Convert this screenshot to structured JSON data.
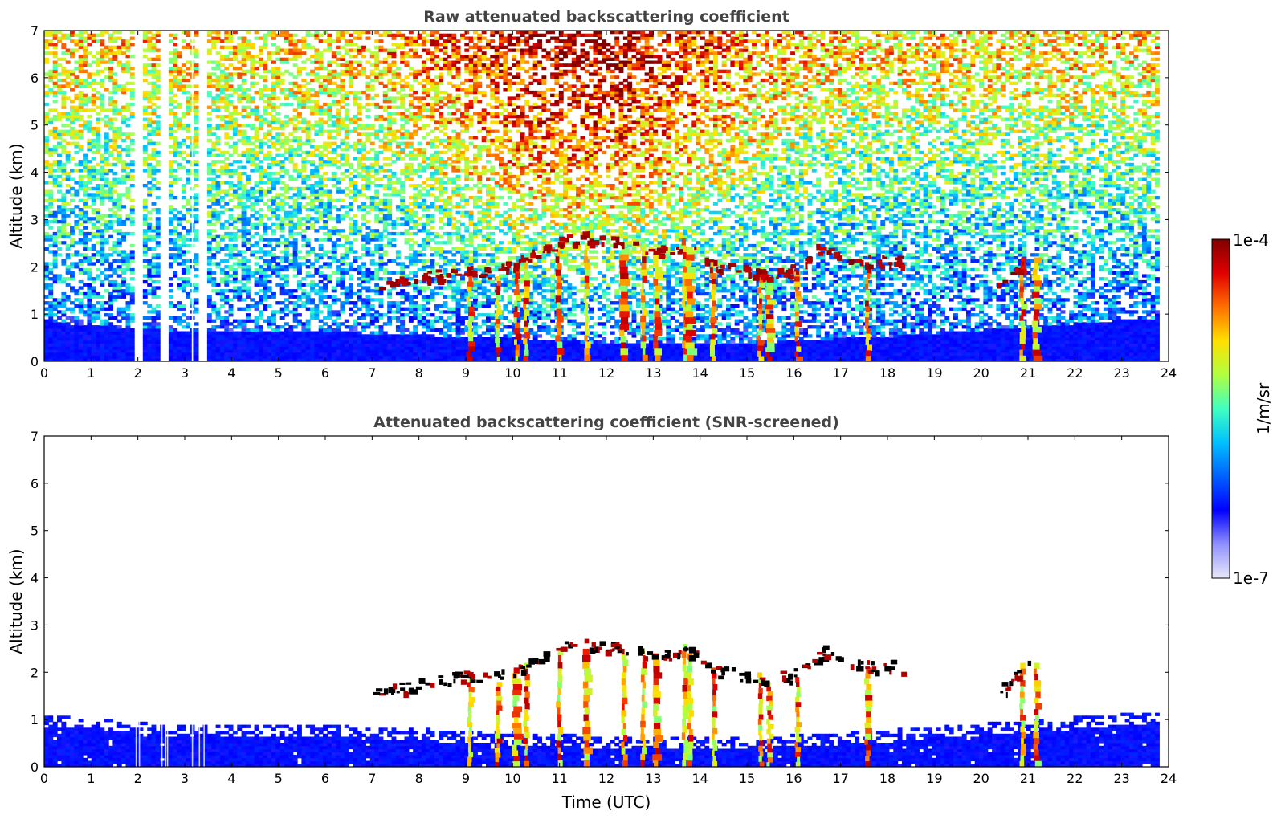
{
  "chart_data": [
    {
      "type": "heatmap",
      "title": "Raw attenuated backscattering coefficient",
      "xlabel": "",
      "ylabel": "Altitude (km)",
      "xlim": [
        0,
        24
      ],
      "ylim": [
        0,
        7
      ],
      "xticks": [
        "0",
        "1",
        "2",
        "3",
        "4",
        "5",
        "6",
        "7",
        "8",
        "9",
        "10",
        "11",
        "12",
        "13",
        "14",
        "15",
        "16",
        "17",
        "18",
        "19",
        "20",
        "21",
        "22",
        "23",
        "24"
      ],
      "yticks": [
        "0",
        "1",
        "2",
        "3",
        "4",
        "5",
        "6",
        "7"
      ],
      "data_end_hour": 23.8,
      "gap_hours": [
        1.95,
        2.02,
        2.5,
        2.58,
        2.62,
        3.15,
        3.3,
        3.4
      ],
      "boundary_layer_top_km": [
        {
          "x": 0,
          "y": 0.8
        },
        {
          "x": 3,
          "y": 0.6
        },
        {
          "x": 6,
          "y": 0.6
        },
        {
          "x": 8.5,
          "y": 0.5
        },
        {
          "x": 10,
          "y": 0.45
        },
        {
          "x": 12,
          "y": 0.35
        },
        {
          "x": 15,
          "y": 0.35
        },
        {
          "x": 18,
          "y": 0.5
        },
        {
          "x": 21,
          "y": 0.7
        },
        {
          "x": 23.8,
          "y": 0.9
        }
      ],
      "cloud_base_km": [
        {
          "x": 7.0,
          "y": 1.55
        },
        {
          "x": 7.5,
          "y": 1.6
        },
        {
          "x": 8.0,
          "y": 1.7
        },
        {
          "x": 8.5,
          "y": 1.8
        },
        {
          "x": 9.0,
          "y": 1.9
        },
        {
          "x": 9.5,
          "y": 1.8
        },
        {
          "x": 10.0,
          "y": 2.0
        },
        {
          "x": 10.5,
          "y": 2.3
        },
        {
          "x": 11.0,
          "y": 2.5
        },
        {
          "x": 11.5,
          "y": 2.6
        },
        {
          "x": 12.0,
          "y": 2.45
        },
        {
          "x": 12.5,
          "y": 2.5
        },
        {
          "x": 13.0,
          "y": 2.3
        },
        {
          "x": 13.7,
          "y": 2.4
        },
        {
          "x": 14.3,
          "y": 2.0
        },
        {
          "x": 14.8,
          "y": 1.9
        },
        {
          "x": 15.3,
          "y": 1.8
        },
        {
          "x": 16.0,
          "y": 1.9
        },
        {
          "x": 16.6,
          "y": 2.4
        },
        {
          "x": 17.5,
          "y": 2.1
        },
        {
          "x": 18.0,
          "y": 2.1
        },
        {
          "x": 20.5,
          "y": 1.6
        },
        {
          "x": 21.0,
          "y": 2.2
        }
      ],
      "precipitation_shafts": [
        {
          "x": 9.1,
          "top_km": 1.9
        },
        {
          "x": 9.7,
          "top_km": 1.8
        },
        {
          "x": 10.1,
          "top_km": 2.1
        },
        {
          "x": 10.3,
          "top_km": 2.2
        },
        {
          "x": 11.0,
          "top_km": 2.5
        },
        {
          "x": 11.6,
          "top_km": 2.5
        },
        {
          "x": 12.4,
          "top_km": 2.4
        },
        {
          "x": 12.8,
          "top_km": 2.5
        },
        {
          "x": 13.1,
          "top_km": 2.4
        },
        {
          "x": 13.7,
          "top_km": 2.6
        },
        {
          "x": 13.8,
          "top_km": 2.4
        },
        {
          "x": 14.3,
          "top_km": 2.1
        },
        {
          "x": 15.3,
          "top_km": 2.0
        },
        {
          "x": 15.5,
          "top_km": 1.8
        },
        {
          "x": 16.1,
          "top_km": 1.9
        },
        {
          "x": 17.6,
          "top_km": 2.1
        },
        {
          "x": 20.9,
          "top_km": 2.2
        },
        {
          "x": 21.2,
          "top_km": 2.2
        }
      ]
    },
    {
      "type": "heatmap",
      "title": "Attenuated backscattering coefficient (SNR-screened)",
      "xlabel": "Time (UTC)",
      "ylabel": "Altitude (km)",
      "xlim": [
        0,
        24
      ],
      "ylim": [
        0,
        7
      ],
      "xticks": [
        "0",
        "1",
        "2",
        "3",
        "4",
        "5",
        "6",
        "7",
        "8",
        "9",
        "10",
        "11",
        "12",
        "13",
        "14",
        "15",
        "16",
        "17",
        "18",
        "19",
        "20",
        "21",
        "22",
        "23",
        "24"
      ],
      "yticks": [
        "0",
        "1",
        "2",
        "3",
        "4",
        "5",
        "6",
        "7"
      ]
    }
  ],
  "colorbar": {
    "label": "1/m/sr",
    "max_label": "1e-4",
    "min_label": "1e-7",
    "scale": "log",
    "colormap": [
      "#e8e8f8",
      "#9090ff",
      "#0000ff",
      "#0060ff",
      "#00c0ff",
      "#40ffc0",
      "#b0ff40",
      "#ffe000",
      "#ff7000",
      "#e00000",
      "#800000"
    ]
  }
}
